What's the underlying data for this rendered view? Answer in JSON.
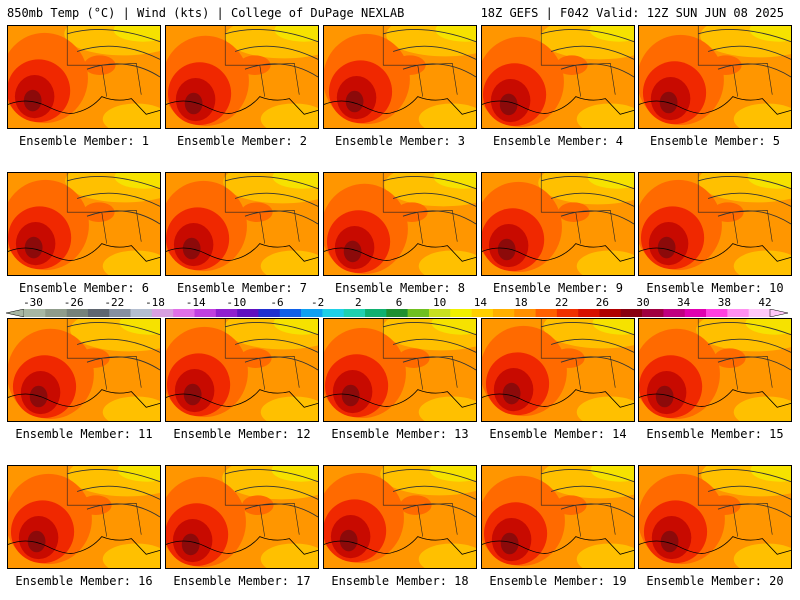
{
  "header": {
    "left": "850mb Temp (°C) | Wind (kts) | College of DuPage NEXLAB",
    "right": "18Z GEFS | F042 Valid: 12Z SUN JUN 08 2025"
  },
  "panels": [
    {
      "label": "Ensemble Member: 1"
    },
    {
      "label": "Ensemble Member: 2"
    },
    {
      "label": "Ensemble Member: 3"
    },
    {
      "label": "Ensemble Member: 4"
    },
    {
      "label": "Ensemble Member: 5"
    },
    {
      "label": "Ensemble Member: 6"
    },
    {
      "label": "Ensemble Member: 7"
    },
    {
      "label": "Ensemble Member: 8"
    },
    {
      "label": "Ensemble Member: 9"
    },
    {
      "label": "Ensemble Member: 10"
    },
    {
      "label": "Ensemble Member: 11"
    },
    {
      "label": "Ensemble Member: 12"
    },
    {
      "label": "Ensemble Member: 13"
    },
    {
      "label": "Ensemble Member: 14"
    },
    {
      "label": "Ensemble Member: 15"
    },
    {
      "label": "Ensemble Member: 16"
    },
    {
      "label": "Ensemble Member: 17"
    },
    {
      "label": "Ensemble Member: 18"
    },
    {
      "label": "Ensemble Member: 19"
    },
    {
      "label": "Ensemble Member: 20"
    }
  ],
  "colorbar": {
    "tick_labels": [
      "-30",
      "-26",
      "-22",
      "-18",
      "-14",
      "-10",
      "-6",
      "-2",
      "2",
      "6",
      "10",
      "14",
      "18",
      "22",
      "26",
      "30",
      "34",
      "38",
      "42"
    ],
    "colors": [
      "#a7b7a3",
      "#8f9c8b",
      "#76827a",
      "#5f6670",
      "#8690a0",
      "#b4bed0",
      "#d8a0e0",
      "#e070e8",
      "#c040e0",
      "#9020d0",
      "#6010c0",
      "#2030d0",
      "#1060e8",
      "#10a0f0",
      "#20d0e8",
      "#20d0b0",
      "#10b070",
      "#209030",
      "#70c020",
      "#c8e020",
      "#f0f000",
      "#ffd000",
      "#ffb000",
      "#ff9000",
      "#ff6000",
      "#f03000",
      "#d81000",
      "#b00000",
      "#880010",
      "#a00040",
      "#c00080",
      "#e000b0",
      "#ff40e0",
      "#ff90f0",
      "#ffc8f8"
    ]
  },
  "palette": {
    "yellow": "#f6e200",
    "amber": "#ffc000",
    "orange": "#ff9600",
    "dark_orange": "#ff6a00",
    "red": "#f02800",
    "dark_red": "#c80a00",
    "maroon": "#8c0a0a"
  }
}
